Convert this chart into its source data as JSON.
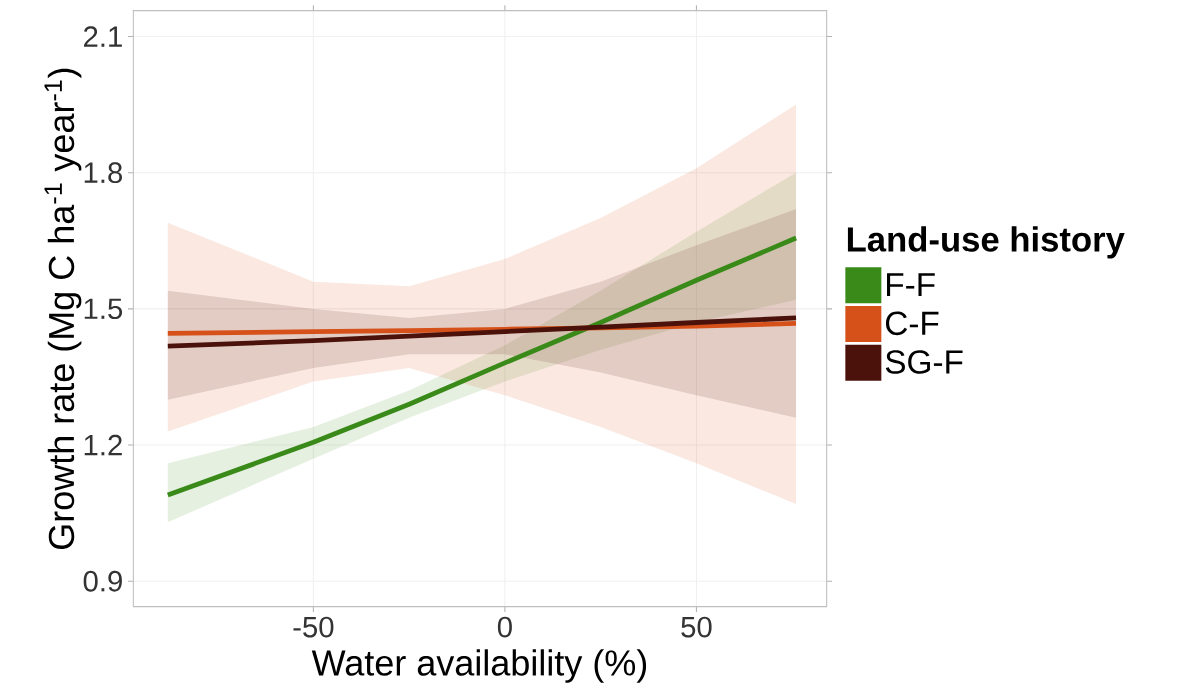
{
  "chart_data": {
    "type": "line",
    "xlabel": "Water availability (%)",
    "ylabel": "Growth rate  (Mg C ha$^{-1}$ year$^{-1}$)",
    "legend_title": "Land-use history",
    "x": [
      -88,
      -50,
      -25,
      0,
      25,
      50,
      76
    ],
    "xlim": [
      -97,
      84
    ],
    "xticks": [
      -50,
      0,
      50
    ],
    "ylim": [
      0.844,
      2.157
    ],
    "yticks": [
      0.9,
      1.2,
      1.5,
      1.8,
      2.1
    ],
    "grid": true,
    "legend": "right",
    "line_style": "solid",
    "marker": "none",
    "series": [
      {
        "name": "F-F",
        "color": "#3a8a1a",
        "values": [
          1.09,
          1.206,
          1.29,
          1.381,
          1.47,
          1.563,
          1.656
        ],
        "lower": [
          1.03,
          1.17,
          1.26,
          1.34,
          1.41,
          1.47,
          1.52
        ],
        "upper": [
          1.16,
          1.24,
          1.32,
          1.42,
          1.54,
          1.67,
          1.8
        ]
      },
      {
        "name": "C-F",
        "color": "#d6511a",
        "values": [
          1.446,
          1.45,
          1.452,
          1.455,
          1.458,
          1.462,
          1.468
        ],
        "lower": [
          1.23,
          1.34,
          1.37,
          1.31,
          1.24,
          1.16,
          1.07
        ],
        "upper": [
          1.69,
          1.56,
          1.55,
          1.61,
          1.7,
          1.81,
          1.95
        ]
      },
      {
        "name": "SG-F",
        "color": "#4a120a",
        "values": [
          1.418,
          1.43,
          1.44,
          1.45,
          1.46,
          1.47,
          1.48
        ],
        "lower": [
          1.3,
          1.37,
          1.4,
          1.4,
          1.36,
          1.31,
          1.26
        ],
        "upper": [
          1.54,
          1.5,
          1.48,
          1.5,
          1.56,
          1.64,
          1.72
        ]
      }
    ]
  }
}
